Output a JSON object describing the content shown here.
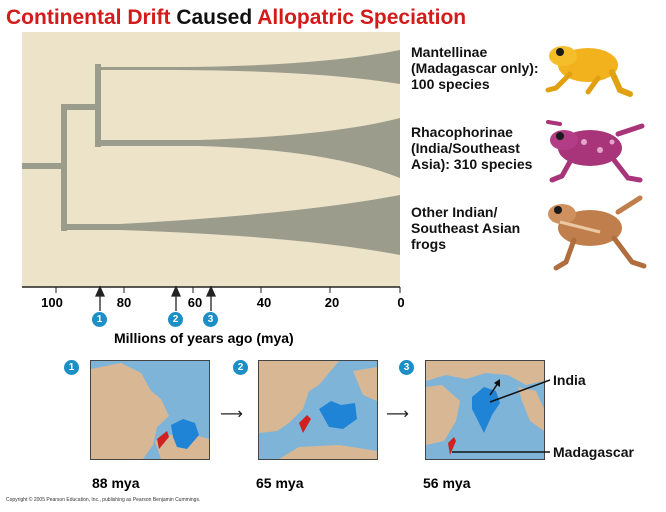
{
  "title": {
    "part1": "Continental Drift",
    "part2": " Caused ",
    "part3": "Allopatric Speciation"
  },
  "clades": [
    {
      "line1": "Mantellinae",
      "line2": "(Madagascar only):",
      "line3": "100 species"
    },
    {
      "line1": "Rhacophorinae",
      "line2": "(India/Southeast",
      "line3": "Asia): 310 species"
    },
    {
      "line1": "Other Indian/",
      "line2": "Southeast Asian",
      "line3": "frogs"
    }
  ],
  "axis": {
    "title": "Millions of years ago (mya)",
    "ticks": [
      "100",
      "80",
      "60",
      "40",
      "20",
      "0"
    ],
    "events": [
      "1",
      "2",
      "3"
    ]
  },
  "maps": [
    {
      "badge": "1",
      "label": "88 mya"
    },
    {
      "badge": "2",
      "label": "65 mya"
    },
    {
      "badge": "3",
      "label": "56 mya"
    }
  ],
  "map_labels": {
    "india": "India",
    "madagascar": "Madagascar"
  },
  "copyright": "Copyright © 2005 Pearson Education, Inc., publishing as Pearson Benjamin Cummings.",
  "colors": {
    "title_red": "#d41a1a",
    "panel": "#ece3c8",
    "branch": "#9c9c8c",
    "ocean": "#7fb4d9",
    "land": "#d8b894",
    "india": "#1f84d6",
    "madagascar": "#d02020",
    "badge": "#1b8fc6"
  }
}
